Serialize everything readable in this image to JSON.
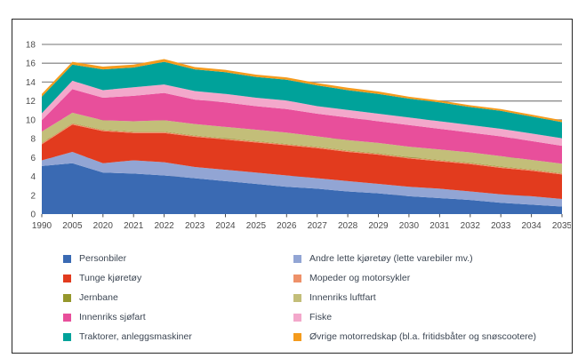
{
  "figure": {
    "background": "#ffffff",
    "border_color": "#262626"
  },
  "chart_data": {
    "type": "area",
    "stacked": true,
    "title": "",
    "xlabel": "",
    "ylabel": "",
    "ylim": [
      0,
      18
    ],
    "ytick_step": 2,
    "grid": true,
    "grid_color": "#8f8f8f",
    "axis_text_color": "#4b4b4b",
    "categories": [
      "1990",
      "2005",
      "2020",
      "2021",
      "2022",
      "2023",
      "2024",
      "2025",
      "2026",
      "2027",
      "2028",
      "2029",
      "2030",
      "2031",
      "2032",
      "2033",
      "2034",
      "2035"
    ],
    "series": [
      {
        "name": "Personbiler",
        "color": "#3a6ab3",
        "values": [
          5.1,
          5.4,
          4.4,
          4.3,
          4.1,
          3.8,
          3.5,
          3.2,
          2.9,
          2.7,
          2.4,
          2.2,
          1.9,
          1.7,
          1.5,
          1.2,
          1.0,
          0.8
        ]
      },
      {
        "name": "Andre lette kjøretøy (lette varebiler mv.)",
        "color": "#92a5d4",
        "values": [
          0.6,
          1.2,
          1.0,
          1.4,
          1.4,
          1.2,
          1.2,
          1.2,
          1.2,
          1.1,
          1.1,
          1.0,
          1.0,
          1.0,
          0.9,
          0.9,
          0.9,
          0.8
        ]
      },
      {
        "name": "Tunge kjøretøy",
        "color": "#e23b1e",
        "values": [
          1.7,
          2.9,
          3.4,
          2.9,
          3.1,
          3.2,
          3.2,
          3.2,
          3.2,
          3.2,
          3.1,
          3.1,
          3.0,
          2.9,
          2.9,
          2.8,
          2.7,
          2.6
        ]
      },
      {
        "name": "Mopeder og motorsykler",
        "color": "#ee9169",
        "values": [
          0.1,
          0.1,
          0.1,
          0.1,
          0.1,
          0.1,
          0.1,
          0.1,
          0.1,
          0.1,
          0.1,
          0.1,
          0.1,
          0.1,
          0.1,
          0.1,
          0.1,
          0.1
        ]
      },
      {
        "name": "Jernbane",
        "color": "#95972c",
        "values": [
          0.05,
          0.05,
          0.05,
          0.05,
          0.05,
          0.05,
          0.05,
          0.05,
          0.05,
          0.05,
          0.05,
          0.05,
          0.05,
          0.05,
          0.05,
          0.05,
          0.05,
          0.05
        ]
      },
      {
        "name": "Innenriks luftfart",
        "color": "#c3be79",
        "values": [
          1.2,
          1.1,
          1.0,
          1.1,
          1.2,
          1.2,
          1.2,
          1.2,
          1.2,
          1.1,
          1.1,
          1.1,
          1.1,
          1.1,
          1.1,
          1.1,
          1.0,
          1.0
        ]
      },
      {
        "name": "Innenriks sjøfart",
        "color": "#e84f9b",
        "values": [
          1.2,
          2.5,
          2.4,
          2.7,
          2.9,
          2.6,
          2.6,
          2.5,
          2.5,
          2.4,
          2.4,
          2.3,
          2.3,
          2.2,
          2.1,
          2.1,
          2.0,
          1.9
        ]
      },
      {
        "name": "Fiske",
        "color": "#f3a8cb",
        "values": [
          0.75,
          0.9,
          0.8,
          0.9,
          0.9,
          0.9,
          0.9,
          0.9,
          0.9,
          0.8,
          0.8,
          0.8,
          0.8,
          0.8,
          0.8,
          0.8,
          0.8,
          0.8
        ]
      },
      {
        "name": "Traktorer, anleggsmaskiner",
        "color": "#00a29a",
        "values": [
          1.75,
          1.7,
          2.2,
          2.1,
          2.4,
          2.3,
          2.3,
          2.2,
          2.2,
          2.2,
          2.1,
          2.1,
          2.0,
          2.0,
          1.9,
          1.9,
          1.8,
          1.7
        ]
      },
      {
        "name": "Øvrige motorredskap (bl.a. fritidsbåter og snøscootere)",
        "color": "#f49b1d",
        "values": [
          0.3,
          0.3,
          0.3,
          0.3,
          0.3,
          0.25,
          0.25,
          0.25,
          0.25,
          0.25,
          0.25,
          0.25,
          0.2,
          0.2,
          0.2,
          0.2,
          0.2,
          0.2
        ]
      }
    ],
    "legend": {
      "position": "bottom",
      "text_color": "#3c4653",
      "columns": [
        [
          0,
          2,
          4,
          6,
          8
        ],
        [
          1,
          3,
          5,
          7,
          9
        ]
      ]
    }
  }
}
